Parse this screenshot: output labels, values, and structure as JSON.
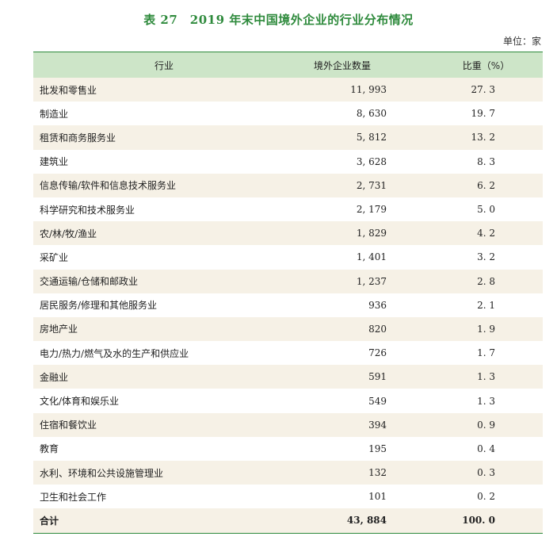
{
  "title": "表 27　2019 年末中国境外企业的行业分布情况",
  "unit": "单位：家",
  "headers": {
    "industry": "行业",
    "count": "境外企业数量",
    "share": "比重（%）"
  },
  "rows": [
    {
      "industry": "批发和零售业",
      "count": "11, 993",
      "share": "27. 3"
    },
    {
      "industry": "制造业",
      "count": "8, 630",
      "share": "19. 7"
    },
    {
      "industry": "租赁和商务服务业",
      "count": "5, 812",
      "share": "13. 2"
    },
    {
      "industry": "建筑业",
      "count": "3, 628",
      "share": "8. 3"
    },
    {
      "industry": "信息传输/软件和信息技术服务业",
      "count": "2, 731",
      "share": "6. 2"
    },
    {
      "industry": "科学研究和技术服务业",
      "count": "2, 179",
      "share": "5. 0"
    },
    {
      "industry": "农/林/牧/渔业",
      "count": "1, 829",
      "share": "4. 2"
    },
    {
      "industry": "采矿业",
      "count": "1, 401",
      "share": "3. 2"
    },
    {
      "industry": "交通运输/仓储和邮政业",
      "count": "1, 237",
      "share": "2. 8"
    },
    {
      "industry": "居民服务/修理和其他服务业",
      "count": "936",
      "share": "2. 1"
    },
    {
      "industry": "房地产业",
      "count": "820",
      "share": "1. 9"
    },
    {
      "industry": "电力/热力/燃气及水的生产和供应业",
      "count": "726",
      "share": "1. 7"
    },
    {
      "industry": "金融业",
      "count": "591",
      "share": "1. 3"
    },
    {
      "industry": "文化/体育和娱乐业",
      "count": "549",
      "share": "1. 3"
    },
    {
      "industry": "住宿和餐饮业",
      "count": "394",
      "share": "0. 9"
    },
    {
      "industry": "教育",
      "count": "195",
      "share": "0. 4"
    },
    {
      "industry": "水利、环境和公共设施管理业",
      "count": "132",
      "share": "0. 3"
    },
    {
      "industry": "卫生和社会工作",
      "count": "101",
      "share": "0. 2"
    }
  ],
  "total": {
    "industry": "合计",
    "count": "43, 884",
    "share": "100. 0"
  },
  "colors": {
    "title": "#2e8a3c",
    "header_bg": "#cde5c8",
    "stripe_bg": "#f6f1e6",
    "rule": "#2e8a3c"
  }
}
